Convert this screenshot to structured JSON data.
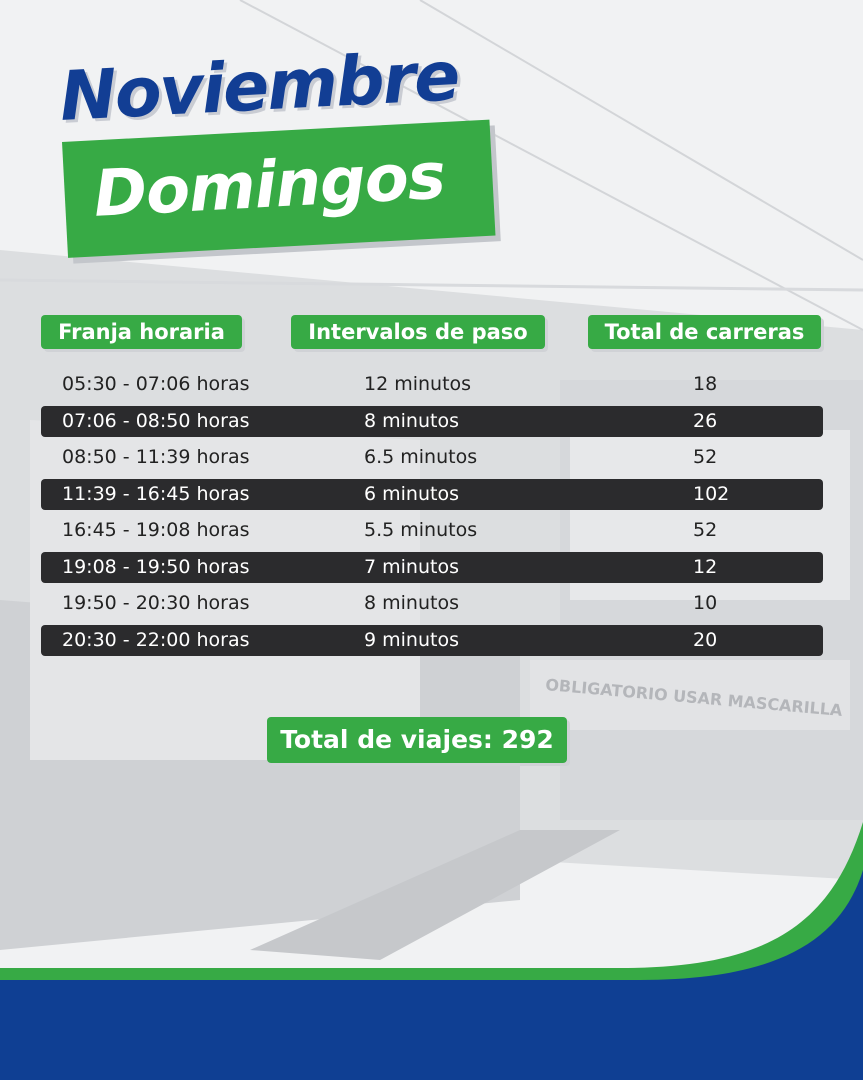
{
  "title": {
    "month": "Noviembre",
    "day": "Domingos"
  },
  "table": {
    "headers": [
      "Franja  horaria",
      "Intervalos de paso",
      "Total de carreras"
    ],
    "rows": [
      [
        "05:30 - 07:06 horas",
        "12 minutos",
        "18"
      ],
      [
        "07:06 - 08:50 horas",
        "8 minutos",
        "26"
      ],
      [
        "08:50 - 11:39 horas",
        "6.5 minutos",
        "52"
      ],
      [
        "11:39 - 16:45  horas",
        "6 minutos",
        "102"
      ],
      [
        "16:45 - 19:08 horas",
        "5.5 minutos",
        "52"
      ],
      [
        "19:08 -  19:50 horas",
        "7 minutos",
        "12"
      ],
      [
        "19:50 - 20:30  horas",
        "8 minutos",
        "10"
      ],
      [
        "20:30 - 22:00 horas",
        "9 minutos",
        "20"
      ]
    ]
  },
  "total": "Total de viajes: 292",
  "train_sign": "OBLIGATORIO USAR MASCARILLA",
  "colors": {
    "brand_blue": "#0f3f93",
    "brand_green": "#37aa45",
    "dark_row": "#2b2b2d"
  }
}
